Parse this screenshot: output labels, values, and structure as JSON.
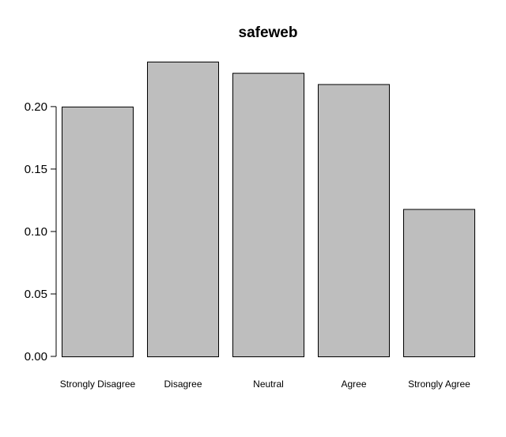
{
  "chart_data": {
    "type": "bar",
    "title": "safeweb",
    "xlabel": "",
    "ylabel": "",
    "categories": [
      "Strongly Disagree",
      "Disagree",
      "Neutral",
      "Agree",
      "Strongly Agree"
    ],
    "values": [
      0.2,
      0.236,
      0.227,
      0.218,
      0.118
    ],
    "ylim": [
      0,
      0.236
    ],
    "yticks": [
      0.0,
      0.05,
      0.1,
      0.15,
      0.2
    ],
    "ytick_labels": [
      "0.00",
      "0.05",
      "0.10",
      "0.15",
      "0.20"
    ],
    "bar_color": "#bebebe",
    "grid": false,
    "legend": "none"
  }
}
